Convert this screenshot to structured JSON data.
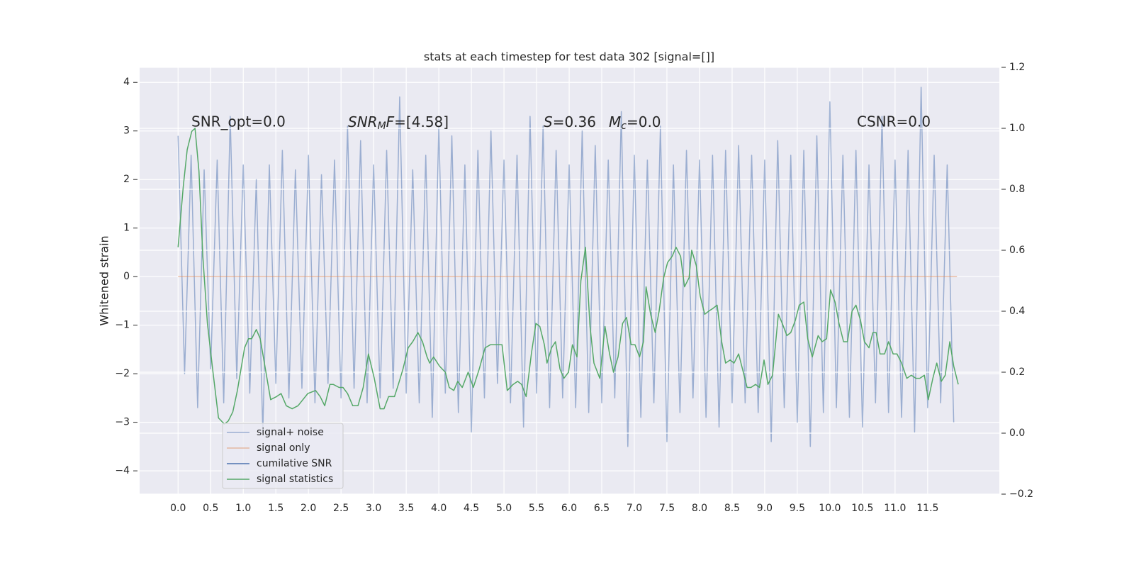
{
  "chart_data": {
    "type": "line",
    "title": "stats at each timestep for test data 302 [signal=[]]",
    "y_label": "Whitened strain",
    "annotations": [
      [
        "SNR_opt=0.0"
      ],
      [
        "SNR",
        "M",
        "F",
        "=[4.58]"
      ],
      [
        "S",
        "=0.36"
      ],
      [
        "M",
        "c",
        "=0.0"
      ],
      [
        "CSNR=0.0"
      ]
    ],
    "xlim": [
      -0.59,
      12.6
    ],
    "xticks": [
      {
        "value": 0,
        "label": "0.0"
      },
      0.5,
      {
        "value": 1,
        "label": "1.0"
      },
      1.5,
      {
        "value": 2,
        "label": "2.0"
      },
      2.5,
      {
        "value": 3,
        "label": "3.0"
      },
      3.5,
      {
        "value": 4,
        "label": "4.0"
      },
      4.5,
      {
        "value": 5,
        "label": "5.0"
      },
      5.5,
      {
        "value": 6,
        "label": "6.0"
      },
      6.5,
      {
        "value": 7,
        "label": "7.0"
      },
      7.5,
      {
        "value": 8,
        "label": "8.0"
      },
      8.5,
      {
        "value": 9,
        "label": "9.0"
      },
      9.5,
      {
        "value": 10,
        "label": "10.0"
      },
      10.5,
      {
        "value": 11,
        "label": "11.0"
      },
      11.5
    ],
    "ylim": [
      -4.48,
      4.31
    ],
    "yticks": [
      {
        "value": -4,
        "label": "−4"
      },
      {
        "value": -3,
        "label": "−3"
      },
      {
        "value": -2,
        "label": "−2"
      },
      {
        "value": -1,
        "label": "−1"
      },
      0,
      1,
      2,
      3,
      4
    ],
    "y2lim": [
      -0.2,
      1.2
    ],
    "y2ticks": [
      {
        "value": -0.2,
        "label": "−0.2"
      },
      {
        "value": 0,
        "label": "0.0"
      },
      0.2,
      0.4,
      0.6,
      0.8,
      {
        "value": 1,
        "label": "1.0"
      },
      1.2
    ],
    "grid": true,
    "legend": "lower left",
    "series": [
      {
        "name": "signal+ noise",
        "color": "#4c72b0",
        "alpha": 0.5,
        "x": [
          0.0,
          0.1,
          0.2,
          0.3,
          0.4,
          0.5,
          0.6,
          0.7,
          0.8,
          0.9,
          1.0,
          1.1,
          1.2,
          1.3,
          1.4,
          1.5,
          1.6,
          1.7,
          1.8,
          1.9,
          2.0,
          2.1,
          2.2,
          2.3,
          2.4,
          2.5,
          2.6,
          2.7,
          2.8,
          2.9,
          3.0,
          3.1,
          3.2,
          3.3,
          3.4,
          3.5,
          3.6,
          3.7,
          3.8,
          3.9,
          4.0,
          4.1,
          4.2,
          4.3,
          4.4,
          4.5,
          4.6,
          4.7,
          4.8,
          4.9,
          5.0,
          5.1,
          5.2,
          5.3,
          5.4,
          5.5,
          5.6,
          5.7,
          5.8,
          5.9,
          6.0,
          6.1,
          6.2,
          6.3,
          6.4,
          6.5,
          6.6,
          6.7,
          6.8,
          6.9,
          7.0,
          7.1,
          7.2,
          7.3,
          7.4,
          7.5,
          7.6,
          7.7,
          7.8,
          7.9,
          8.0,
          8.1,
          8.2,
          8.3,
          8.4,
          8.5,
          8.6,
          8.7,
          8.8,
          8.9,
          9.0,
          9.1,
          9.2,
          9.3,
          9.4,
          9.5,
          9.6,
          9.7,
          9.8,
          9.9,
          10.0,
          10.1,
          10.2,
          10.3,
          10.4,
          10.5,
          10.6,
          10.7,
          10.8,
          10.9,
          11.0,
          11.1,
          11.2,
          11.3,
          11.4,
          11.5,
          11.6,
          11.7,
          11.8,
          11.9
        ],
        "values": [
          2.9,
          -2.0,
          2.5,
          -2.7,
          2.2,
          -1.9,
          2.4,
          -2.6,
          3.3,
          -2.1,
          2.3,
          -2.4,
          2.0,
          -3.2,
          2.3,
          -2.2,
          2.6,
          -2.5,
          2.2,
          -2.3,
          2.5,
          -2.6,
          2.1,
          -2.2,
          2.4,
          -2.5,
          3.1,
          -2.3,
          2.8,
          -2.6,
          2.3,
          -2.5,
          2.6,
          -2.3,
          3.7,
          -2.4,
          2.2,
          -2.6,
          2.5,
          -2.9,
          3.1,
          -2.4,
          2.9,
          -2.8,
          2.3,
          -3.2,
          2.6,
          -2.5,
          3.0,
          -2.2,
          2.4,
          -2.6,
          2.5,
          -3.1,
          3.3,
          -2.4,
          3.1,
          -2.7,
          2.6,
          -2.5,
          2.3,
          -2.7,
          3.0,
          -2.8,
          2.7,
          -2.6,
          2.4,
          -2.5,
          3.4,
          -3.5,
          2.5,
          -2.9,
          2.4,
          -2.6,
          3.1,
          -3.4,
          2.3,
          -2.8,
          2.6,
          -2.5,
          2.4,
          -2.9,
          2.5,
          -3.1,
          2.6,
          -2.6,
          2.7,
          -2.6,
          2.5,
          -2.8,
          2.4,
          -3.4,
          2.8,
          -2.7,
          2.5,
          -3.0,
          2.6,
          -3.5,
          2.9,
          -2.8,
          3.6,
          -2.7,
          2.5,
          -2.9,
          2.6,
          -3.1,
          2.3,
          -2.6,
          3.3,
          -2.8,
          2.4,
          -2.9,
          2.6,
          -3.2,
          3.9,
          -2.7,
          2.5,
          -2.6,
          2.3,
          -3.0
        ]
      },
      {
        "name": "signal only",
        "color": "#dd8452",
        "alpha": 0.5,
        "x": [
          0,
          11.95
        ],
        "values": [
          0,
          0
        ]
      },
      {
        "name": "cumilative SNR",
        "color": "#4c72b0"
      },
      {
        "name": "signal statistics",
        "color": "#55a868",
        "axis": "y2",
        "x": [
          0.0,
          0.08,
          0.14,
          0.21,
          0.26,
          0.32,
          0.38,
          0.45,
          0.53,
          0.62,
          0.71,
          0.77,
          0.84,
          0.91,
          1.02,
          1.08,
          1.13,
          1.2,
          1.26,
          1.34,
          1.42,
          1.51,
          1.58,
          1.66,
          1.75,
          1.84,
          1.99,
          2.11,
          2.18,
          2.25,
          2.33,
          2.38,
          2.47,
          2.53,
          2.6,
          2.68,
          2.76,
          2.84,
          2.92,
          3.01,
          3.1,
          3.16,
          3.23,
          3.32,
          3.38,
          3.45,
          3.53,
          3.6,
          3.68,
          3.75,
          3.82,
          3.86,
          3.92,
          4.01,
          4.1,
          4.16,
          4.23,
          4.29,
          4.36,
          4.45,
          4.53,
          4.62,
          4.71,
          4.79,
          4.88,
          4.97,
          5.05,
          5.14,
          5.21,
          5.27,
          5.34,
          5.42,
          5.49,
          5.55,
          5.62,
          5.66,
          5.73,
          5.79,
          5.86,
          5.92,
          5.99,
          6.05,
          6.12,
          6.18,
          6.25,
          6.32,
          6.38,
          6.47,
          6.55,
          6.62,
          6.68,
          6.75,
          6.82,
          6.88,
          6.95,
          7.01,
          7.08,
          7.14,
          7.18,
          7.25,
          7.32,
          7.38,
          7.45,
          7.51,
          7.58,
          7.64,
          7.71,
          7.77,
          7.84,
          7.88,
          7.95,
          8.01,
          8.08,
          8.14,
          8.21,
          8.27,
          8.34,
          8.4,
          8.47,
          8.53,
          8.6,
          8.66,
          8.73,
          8.79,
          8.86,
          8.92,
          8.99,
          9.05,
          9.12,
          9.21,
          9.27,
          9.34,
          9.4,
          9.47,
          9.53,
          9.6,
          9.66,
          9.73,
          9.82,
          9.88,
          9.95,
          10.01,
          10.08,
          10.14,
          10.21,
          10.27,
          10.34,
          10.4,
          10.47,
          10.53,
          10.6,
          10.66,
          10.71,
          10.77,
          10.84,
          10.9,
          10.97,
          11.03,
          11.1,
          11.18,
          11.25,
          11.32,
          11.38,
          11.45,
          11.51,
          11.58,
          11.64,
          11.71,
          11.77,
          11.84,
          11.9,
          11.97
        ],
        "values": [
          0.61,
          0.81,
          0.93,
          0.99,
          1.0,
          0.86,
          0.58,
          0.36,
          0.21,
          0.05,
          0.03,
          0.04,
          0.07,
          0.14,
          0.28,
          0.31,
          0.31,
          0.34,
          0.31,
          0.21,
          0.11,
          0.12,
          0.13,
          0.09,
          0.08,
          0.09,
          0.13,
          0.14,
          0.12,
          0.09,
          0.16,
          0.16,
          0.15,
          0.15,
          0.13,
          0.09,
          0.09,
          0.15,
          0.26,
          0.18,
          0.08,
          0.08,
          0.12,
          0.12,
          0.16,
          0.21,
          0.28,
          0.3,
          0.33,
          0.3,
          0.25,
          0.23,
          0.25,
          0.22,
          0.2,
          0.15,
          0.14,
          0.17,
          0.15,
          0.2,
          0.15,
          0.21,
          0.28,
          0.29,
          0.29,
          0.29,
          0.14,
          0.16,
          0.17,
          0.16,
          0.12,
          0.26,
          0.36,
          0.35,
          0.29,
          0.23,
          0.28,
          0.3,
          0.21,
          0.18,
          0.2,
          0.29,
          0.25,
          0.5,
          0.61,
          0.35,
          0.23,
          0.18,
          0.35,
          0.26,
          0.2,
          0.25,
          0.36,
          0.38,
          0.29,
          0.29,
          0.25,
          0.3,
          0.48,
          0.39,
          0.33,
          0.4,
          0.51,
          0.56,
          0.58,
          0.61,
          0.58,
          0.48,
          0.51,
          0.6,
          0.55,
          0.45,
          0.39,
          0.4,
          0.41,
          0.42,
          0.3,
          0.23,
          0.24,
          0.23,
          0.26,
          0.21,
          0.15,
          0.15,
          0.16,
          0.15,
          0.24,
          0.16,
          0.19,
          0.39,
          0.36,
          0.32,
          0.33,
          0.37,
          0.42,
          0.43,
          0.31,
          0.25,
          0.32,
          0.3,
          0.31,
          0.47,
          0.43,
          0.36,
          0.3,
          0.3,
          0.4,
          0.42,
          0.37,
          0.3,
          0.28,
          0.33,
          0.33,
          0.26,
          0.26,
          0.3,
          0.26,
          0.26,
          0.23,
          0.18,
          0.19,
          0.18,
          0.18,
          0.19,
          0.11,
          0.18,
          0.23,
          0.17,
          0.19,
          0.3,
          0.22,
          0.16
        ]
      }
    ]
  }
}
